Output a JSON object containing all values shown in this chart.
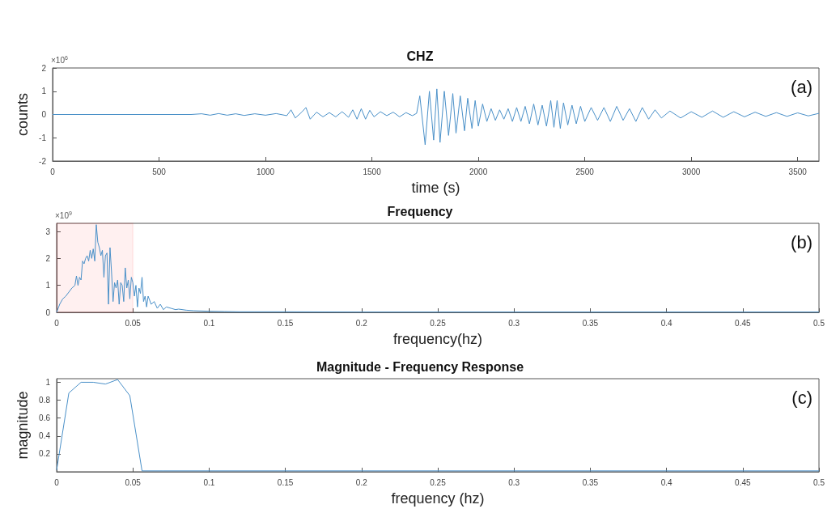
{
  "chart_data": [
    {
      "type": "line",
      "title": "CHZ",
      "xlabel": "time (s)",
      "ylabel": "counts",
      "annotations": [
        "×10$^{6}$",
        "(a)"
      ],
      "xlim": [
        0,
        3600
      ],
      "xticks": [
        0,
        500,
        1000,
        1500,
        2000,
        2500,
        3000,
        3500
      ],
      "ylim": [
        -2,
        2
      ],
      "yticks": [
        -2,
        -1,
        0,
        1,
        2
      ],
      "grid": false,
      "series": [
        {
          "color": "#4a90c8",
          "x": [
            0,
            650,
            700,
            740,
            780,
            820,
            860,
            900,
            950,
            1000,
            1050,
            1100,
            1120,
            1140,
            1170,
            1190,
            1210,
            1240,
            1270,
            1300,
            1330,
            1360,
            1390,
            1410,
            1430,
            1450,
            1470,
            1490,
            1510,
            1540,
            1570,
            1600,
            1630,
            1660,
            1690,
            1710,
            1725,
            1750,
            1770,
            1790,
            1805,
            1820,
            1840,
            1860,
            1880,
            1895,
            1915,
            1935,
            1950,
            1970,
            1985,
            2000,
            2020,
            2040,
            2060,
            2080,
            2100,
            2120,
            2140,
            2160,
            2180,
            2200,
            2220,
            2240,
            2260,
            2280,
            2300,
            2320,
            2340,
            2355,
            2370,
            2385,
            2400,
            2420,
            2440,
            2460,
            2480,
            2500,
            2530,
            2560,
            2590,
            2620,
            2650,
            2680,
            2710,
            2740,
            2770,
            2800,
            2830,
            2860,
            2900,
            2950,
            3000,
            3050,
            3100,
            3150,
            3200,
            3250,
            3300,
            3350,
            3400,
            3450,
            3500,
            3550,
            3600
          ],
          "values": [
            0,
            0,
            0.03,
            -0.03,
            0.04,
            -0.03,
            0.03,
            -0.04,
            0.03,
            -0.03,
            0.04,
            -0.05,
            0.2,
            -0.15,
            0.1,
            0.3,
            -0.2,
            0.1,
            -0.1,
            0.08,
            -0.1,
            0.12,
            -0.12,
            0.2,
            -0.2,
            0.25,
            -0.2,
            0.18,
            -0.1,
            0.12,
            -0.05,
            0.1,
            -0.1,
            0.08,
            -0.05,
            0.05,
            0.8,
            -1.3,
            1.0,
            -1.1,
            1.1,
            -1.2,
            1.0,
            -0.9,
            0.9,
            -0.8,
            0.8,
            -0.7,
            0.7,
            -0.6,
            0.6,
            -0.5,
            0.45,
            -0.3,
            0.25,
            -0.25,
            0.2,
            -0.2,
            0.25,
            -0.3,
            0.3,
            -0.3,
            0.35,
            -0.4,
            0.45,
            -0.45,
            0.4,
            -0.5,
            0.6,
            -0.55,
            0.6,
            -0.6,
            0.5,
            -0.45,
            0.4,
            -0.4,
            0.35,
            -0.3,
            0.3,
            -0.25,
            0.3,
            -0.3,
            0.35,
            -0.25,
            0.25,
            -0.3,
            0.3,
            -0.2,
            0.2,
            -0.15,
            0.15,
            -0.15,
            0.12,
            -0.12,
            0.15,
            -0.12,
            0.12,
            -0.1,
            0.1,
            -0.08,
            0.08,
            -0.08,
            0.07,
            -0.06,
            0.05
          ]
        }
      ]
    },
    {
      "type": "line",
      "title": "Frequency",
      "xlabel": "frequency(hz)",
      "annotations": [
        "×10$^{9}$",
        "(b)"
      ],
      "xlim": [
        0,
        0.5
      ],
      "xticks": [
        0,
        0.05,
        0.1,
        0.15,
        0.2,
        0.25,
        0.3,
        0.35,
        0.4,
        0.45,
        0.5
      ],
      "ylim": [
        0,
        3.3
      ],
      "yticks": [
        0,
        1,
        2,
        3
      ],
      "grid": false,
      "bands": [
        {
          "axis": "x",
          "from": 0,
          "to": 0.05,
          "color": "#ff0000"
        }
      ],
      "series": [
        {
          "color": "#4a90c8",
          "x": [
            0,
            0.002,
            0.004,
            0.006,
            0.008,
            0.01,
            0.012,
            0.013,
            0.014,
            0.015,
            0.016,
            0.017,
            0.018,
            0.019,
            0.02,
            0.021,
            0.022,
            0.023,
            0.024,
            0.025,
            0.026,
            0.027,
            0.028,
            0.029,
            0.03,
            0.031,
            0.032,
            0.033,
            0.034,
            0.035,
            0.036,
            0.037,
            0.038,
            0.039,
            0.04,
            0.041,
            0.042,
            0.043,
            0.044,
            0.045,
            0.046,
            0.047,
            0.048,
            0.049,
            0.05,
            0.051,
            0.052,
            0.053,
            0.054,
            0.055,
            0.056,
            0.057,
            0.058,
            0.059,
            0.06,
            0.062,
            0.064,
            0.066,
            0.068,
            0.07,
            0.072,
            0.075,
            0.078,
            0.08,
            0.085,
            0.09,
            0.095,
            0.1,
            0.11,
            0.12,
            0.13,
            0.15,
            0.2,
            0.25,
            0.3,
            0.35,
            0.4,
            0.45,
            0.5
          ],
          "values": [
            0,
            0.3,
            0.5,
            0.6,
            0.75,
            0.9,
            1.0,
            1.35,
            1.0,
            1.3,
            1.2,
            1.9,
            1.8,
            2.0,
            2.1,
            1.9,
            2.3,
            2.0,
            2.35,
            1.9,
            3.25,
            2.6,
            2.4,
            2.1,
            2.3,
            1.3,
            2.1,
            2.2,
            0.3,
            2.4,
            1.5,
            0.4,
            1.1,
            0.9,
            1.2,
            0.3,
            1.1,
            1.0,
            0.4,
            1.65,
            0.9,
            1.2,
            0.5,
            1.3,
            1.1,
            0.6,
            1.0,
            0.2,
            0.9,
            0.7,
            1.3,
            0.4,
            0.6,
            0.2,
            0.6,
            0.3,
            0.4,
            0.15,
            0.3,
            0.1,
            0.2,
            0.15,
            0.1,
            0.12,
            0.08,
            0.06,
            0.05,
            0.04,
            0.03,
            0.02,
            0.02,
            0.02,
            0.01,
            0.01,
            0.01,
            0.01,
            0.01,
            0.01,
            0.01
          ]
        }
      ]
    },
    {
      "type": "line",
      "title": "Magnitude - Frequency Response",
      "xlabel": "frequency (hz)",
      "ylabel": "magnitude",
      "annotations": [
        "(c)"
      ],
      "xlim": [
        0,
        0.5
      ],
      "xticks": [
        0,
        0.05,
        0.1,
        0.15,
        0.2,
        0.25,
        0.3,
        0.35,
        0.4,
        0.45,
        0.5
      ],
      "ylim": [
        0,
        1.04
      ],
      "yticks": [
        0.2,
        0.4,
        0.6,
        0.8,
        1
      ],
      "grid": false,
      "series": [
        {
          "color": "#4a90c8",
          "x": [
            0,
            0.008,
            0.016,
            0.024,
            0.032,
            0.04,
            0.048,
            0.056,
            0.07,
            0.1,
            0.2,
            0.3,
            0.4,
            0.5
          ],
          "values": [
            0.02,
            0.88,
            1.0,
            1.0,
            0.98,
            1.03,
            0.85,
            0.01,
            0.01,
            0.01,
            0.01,
            0.01,
            0.01,
            0.01
          ]
        }
      ]
    }
  ]
}
